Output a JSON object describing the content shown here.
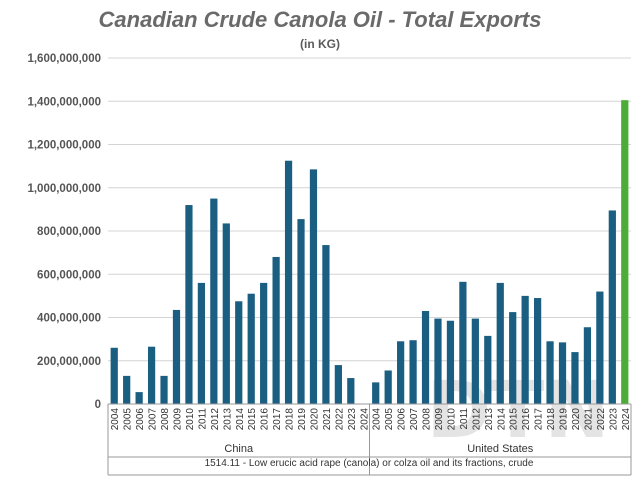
{
  "chart_data": {
    "type": "bar",
    "title": "Canadian Crude Canola Oil - Total Exports",
    "subtitle": "(in KG)",
    "xlabel": "1514.11 - Low erucic acid rape (canola) or colza oil and its fractions, crude",
    "ylabel": "",
    "ylim": [
      0,
      1600000000
    ],
    "yticks": [
      "0",
      "200,000,000",
      "400,000,000",
      "600,000,000",
      "800,000,000",
      "1,000,000,000",
      "1,200,000,000",
      "1,400,000,000",
      "1,600,000,000"
    ],
    "ytick_values": [
      0,
      200000000,
      400000000,
      600000000,
      800000000,
      1000000000,
      1200000000,
      1400000000,
      1600000000
    ],
    "grid": true,
    "colors": {
      "bar": "#1a5f82",
      "highlight": "#4cac38",
      "grid": "#d4d4d4",
      "axis": "#999999"
    },
    "groups": [
      {
        "name": "China",
        "categories": [
          "2004",
          "2005",
          "2006",
          "2007",
          "2008",
          "2009",
          "2010",
          "2011",
          "2012",
          "2013",
          "2014",
          "2015",
          "2016",
          "2017",
          "2018",
          "2019",
          "2020",
          "2021",
          "2022",
          "2023",
          "2024"
        ],
        "values": [
          260000000,
          130000000,
          55000000,
          265000000,
          130000000,
          435000000,
          920000000,
          560000000,
          950000000,
          835000000,
          475000000,
          510000000,
          560000000,
          680000000,
          1125000000,
          855000000,
          1085000000,
          735000000,
          180000000,
          120000000,
          0
        ]
      },
      {
        "name": "United States",
        "categories": [
          "2004",
          "2005",
          "2006",
          "2007",
          "2008",
          "2009",
          "2010",
          "2011",
          "2012",
          "2013",
          "2014",
          "2015",
          "2016",
          "2017",
          "2018",
          "2019",
          "2020",
          "2021",
          "2022",
          "2023",
          "2024"
        ],
        "values": [
          100000000,
          155000000,
          290000000,
          295000000,
          430000000,
          395000000,
          385000000,
          565000000,
          395000000,
          315000000,
          560000000,
          425000000,
          500000000,
          490000000,
          290000000,
          285000000,
          240000000,
          355000000,
          520000000,
          895000000,
          1405000000
        ],
        "highlight_index": 20
      }
    ]
  },
  "watermark": "DTN"
}
